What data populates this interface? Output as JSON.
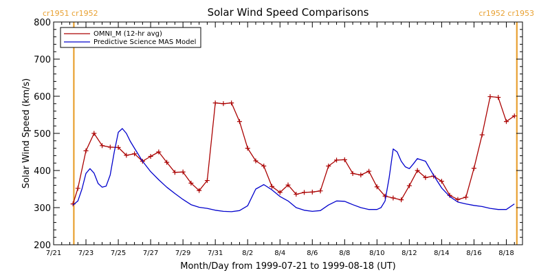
{
  "chart_data": {
    "type": "line",
    "title": "Solar Wind Speed Comparisons",
    "xlabel": "Month/Day from 1999-07-21 to 1999-08-18 (UT)",
    "ylabel": "Solar Wind Speed (km/s)",
    "xlim_days": [
      0,
      29
    ],
    "ylim": [
      200,
      800
    ],
    "x_ticks": [
      {
        "day": 0,
        "label": "7/21"
      },
      {
        "day": 2,
        "label": "7/23"
      },
      {
        "day": 4,
        "label": "7/25"
      },
      {
        "day": 6,
        "label": "7/27"
      },
      {
        "day": 8,
        "label": "7/29"
      },
      {
        "day": 10,
        "label": "7/31"
      },
      {
        "day": 12,
        "label": "8/2"
      },
      {
        "day": 14,
        "label": "8/4"
      },
      {
        "day": 16,
        "label": "8/6"
      },
      {
        "day": 18,
        "label": "8/8"
      },
      {
        "day": 20,
        "label": "8/10"
      },
      {
        "day": 22,
        "label": "8/12"
      },
      {
        "day": 24,
        "label": "8/14"
      },
      {
        "day": 26,
        "label": "8/16"
      },
      {
        "day": 28,
        "label": "8/18"
      }
    ],
    "y_ticks": [
      200,
      300,
      400,
      500,
      600,
      700,
      800
    ],
    "grid": false,
    "legend_position": "top-left",
    "series": [
      {
        "name": "OMNI_M (12-hr avg)",
        "color": "#aa0000",
        "marker": "plus",
        "x": [
          1.2,
          1.5,
          2.0,
          2.5,
          3.0,
          3.5,
          4.0,
          4.5,
          5.0,
          5.5,
          6.0,
          6.5,
          7.0,
          7.5,
          8.0,
          8.5,
          9.0,
          9.5,
          10.0,
          10.5,
          11.0,
          11.5,
          12.0,
          12.5,
          13.0,
          13.5,
          14.0,
          14.5,
          15.0,
          15.5,
          16.0,
          16.5,
          17.0,
          17.5,
          18.0,
          18.5,
          19.0,
          19.5,
          20.0,
          20.5,
          21.0,
          21.5,
          22.0,
          22.5,
          23.0,
          23.5,
          24.0,
          24.5,
          25.0,
          25.5,
          26.0,
          26.5,
          27.0,
          27.5,
          28.0,
          28.5
        ],
        "values": [
          310,
          352,
          453,
          500,
          467,
          463,
          462,
          441,
          445,
          425,
          438,
          450,
          422,
          395,
          396,
          366,
          346,
          373,
          582,
          580,
          582,
          532,
          460,
          426,
          412,
          357,
          341,
          361,
          336,
          341,
          342,
          345,
          412,
          428,
          429,
          392,
          388,
          398,
          356,
          331,
          326,
          321,
          359,
          400,
          381,
          385,
          371,
          333,
          322,
          328,
          406,
          496,
          599,
          597,
          532,
          547
        ]
      },
      {
        "name": "Predictive Science MAS Model",
        "color": "#0000cc",
        "marker": "none",
        "x": [
          1.2,
          1.5,
          1.75,
          2.0,
          2.25,
          2.5,
          2.75,
          3.0,
          3.25,
          3.5,
          3.75,
          4.0,
          4.25,
          4.5,
          4.75,
          5.0,
          5.5,
          6.0,
          6.5,
          7.0,
          7.5,
          8.0,
          8.5,
          9.0,
          9.5,
          10.0,
          10.5,
          11.0,
          11.5,
          12.0,
          12.5,
          13.0,
          13.5,
          14.0,
          14.5,
          15.0,
          15.5,
          16.0,
          16.5,
          17.0,
          17.5,
          18.0,
          18.5,
          19.0,
          19.5,
          20.0,
          20.25,
          20.5,
          20.75,
          21.0,
          21.25,
          21.5,
          21.75,
          22.0,
          22.25,
          22.5,
          23.0,
          23.5,
          24.0,
          24.5,
          25.0,
          25.5,
          26.0,
          26.5,
          27.0,
          27.5,
          28.0,
          28.5
        ],
        "values": [
          307,
          318,
          350,
          392,
          405,
          393,
          365,
          355,
          358,
          388,
          450,
          503,
          513,
          500,
          478,
          460,
          425,
          397,
          375,
          355,
          338,
          322,
          308,
          301,
          298,
          293,
          290,
          289,
          292,
          305,
          350,
          362,
          348,
          330,
          318,
          300,
          293,
          290,
          292,
          307,
          318,
          317,
          308,
          300,
          295,
          295,
          300,
          318,
          380,
          458,
          450,
          425,
          410,
          405,
          418,
          432,
          425,
          387,
          353,
          330,
          315,
          310,
          306,
          303,
          298,
          295,
          295,
          310
        ]
      }
    ],
    "annotations": [
      {
        "label": "cr1951 cr1952",
        "day": 1.25,
        "color": "#e8a030"
      },
      {
        "label": "cr1952 cr1953",
        "day": 28.65,
        "color": "#e8a030"
      }
    ]
  }
}
